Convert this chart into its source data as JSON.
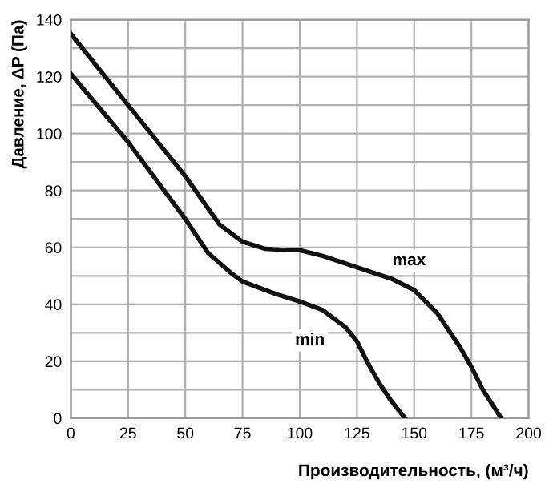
{
  "chart_data": {
    "type": "line",
    "xlabel": "Производительность, (м³/ч)",
    "ylabel": "Давление, ΔP (Па)",
    "xlim": [
      0,
      200
    ],
    "ylim": [
      0,
      140
    ],
    "xticks": [
      0,
      25,
      50,
      75,
      100,
      125,
      150,
      175,
      200
    ],
    "yticks": [
      0,
      {
        "value": 10,
        "label": null
      },
      20,
      {
        "value": 30,
        "label": null
      },
      40,
      {
        "value": 50,
        "label": null
      },
      60,
      {
        "value": 70,
        "label": null
      },
      80,
      {
        "value": 90,
        "label": null
      },
      100,
      {
        "value": 110,
        "label": null
      },
      120,
      {
        "value": 130,
        "label": null
      },
      140
    ],
    "grid": true,
    "marker": "none",
    "line_style": "solid",
    "series": [
      {
        "name": "max",
        "color": "#111111",
        "x": [
          0,
          25,
          50,
          65,
          75,
          85,
          95,
          100,
          110,
          125,
          140,
          150,
          160,
          170,
          175,
          180,
          188
        ],
        "values": [
          135,
          110,
          85,
          68,
          62,
          59.5,
          59,
          59,
          57,
          53,
          49,
          45,
          37,
          25,
          18,
          10,
          0
        ]
      },
      {
        "name": "min",
        "color": "#111111",
        "x": [
          0,
          25,
          50,
          60,
          70,
          75,
          90,
          100,
          110,
          120,
          125,
          130,
          135,
          140,
          146
        ],
        "values": [
          121,
          97,
          70,
          58,
          51,
          48,
          43.5,
          41,
          38,
          32,
          27,
          19,
          12,
          6,
          0
        ]
      }
    ]
  }
}
